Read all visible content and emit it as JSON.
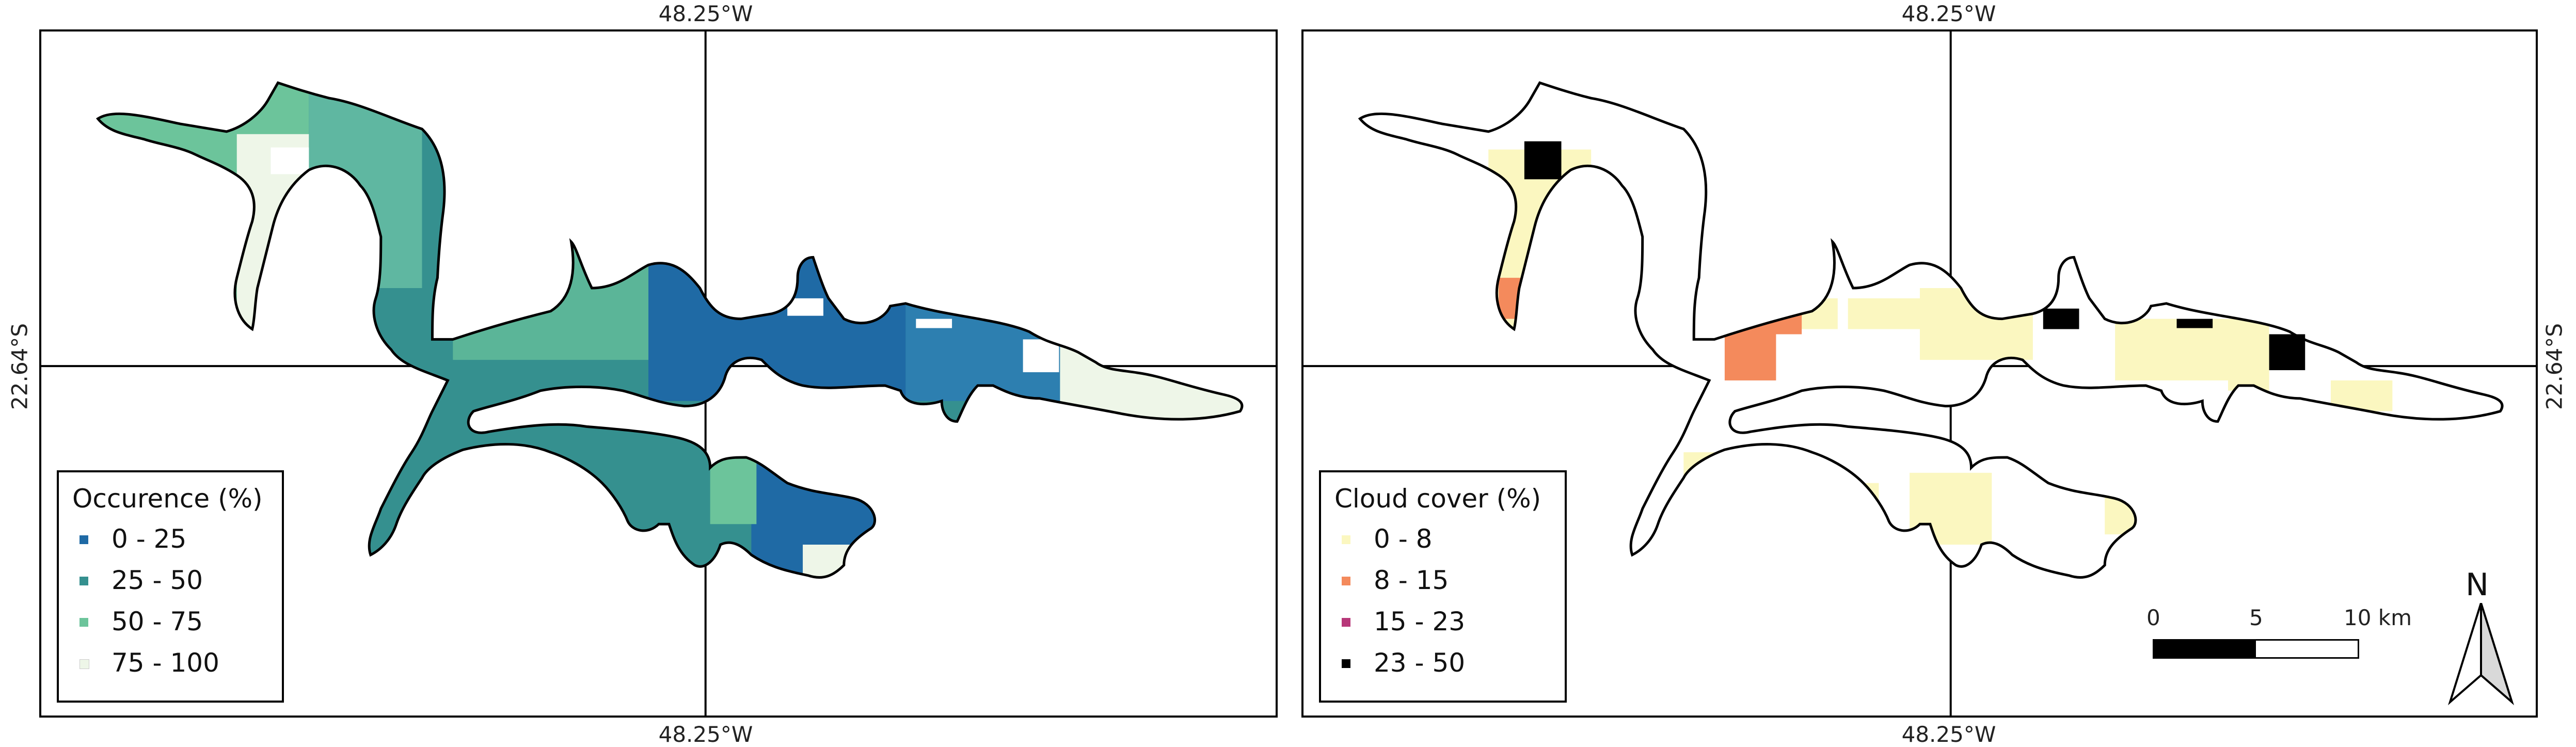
{
  "coordinates": {
    "longitude_label": "48.25°W",
    "latitude_label": "22.64°S"
  },
  "left_map": {
    "legend": {
      "title": "Occurence (%)",
      "items": [
        {
          "label": "0 - 25",
          "color": "#1f6aa5"
        },
        {
          "label": "25 - 50",
          "color": "#35908f"
        },
        {
          "label": "50 - 75",
          "color": "#6cc49b"
        },
        {
          "label": "75 - 100",
          "color": "#eef6e8"
        }
      ]
    }
  },
  "right_map": {
    "legend": {
      "title": "Cloud cover (%)",
      "items": [
        {
          "label": "0 - 8",
          "color": "#fbf7c0"
        },
        {
          "label": "8 - 15",
          "color": "#f48a5c"
        },
        {
          "label": "15 - 23",
          "color": "#b73779"
        },
        {
          "label": "23 - 50",
          "color": "#000000"
        }
      ]
    }
  },
  "scale_bar": {
    "labels": [
      "0",
      "5",
      "10 km"
    ]
  },
  "north_arrow": {
    "label": "N"
  }
}
